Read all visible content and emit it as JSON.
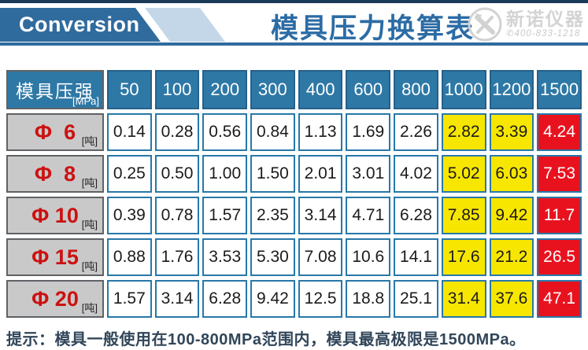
{
  "header": {
    "badge": "Conversion",
    "title": "模具压力换算表",
    "logo": {
      "brand": "新诺仪器",
      "phone_icon": "phone-icon",
      "phone": "400-833-1218"
    }
  },
  "table": {
    "corner": {
      "label": "模具压强",
      "unit": "[MPa]"
    },
    "pressure_columns": [
      "50",
      "100",
      "200",
      "300",
      "400",
      "600",
      "800",
      "1000",
      "1200",
      "1500"
    ],
    "row_unit": "[吨]",
    "rows": [
      {
        "label": "Φ  6",
        "values": [
          "0.14",
          "0.28",
          "0.56",
          "0.84",
          "1.13",
          "1.69",
          "2.26",
          "2.82",
          "3.39",
          "4.24"
        ]
      },
      {
        "label": "Φ  8",
        "values": [
          "0.25",
          "0.50",
          "1.00",
          "1.50",
          "2.01",
          "3.01",
          "4.02",
          "5.02",
          "6.03",
          "7.53"
        ]
      },
      {
        "label": "Φ 10",
        "values": [
          "0.39",
          "0.78",
          "1.57",
          "2.35",
          "3.14",
          "4.71",
          "6.28",
          "7.85",
          "9.42",
          "11.7"
        ]
      },
      {
        "label": "Φ 15",
        "values": [
          "0.88",
          "1.76",
          "3.53",
          "5.30",
          "7.08",
          "10.6",
          "14.1",
          "17.6",
          "21.2",
          "26.5"
        ]
      },
      {
        "label": "Φ 20",
        "values": [
          "1.57",
          "3.14",
          "6.28",
          "9.42",
          "12.5",
          "18.8",
          "25.1",
          "31.4",
          "37.6",
          "47.1"
        ]
      }
    ],
    "highlight": {
      "yellow_cols": [
        7,
        8
      ],
      "red_cols": [
        9
      ]
    }
  },
  "footer": {
    "tip": "提示：模具一般使用在100-800MPa范围内，模具最高极限是1500MPa。"
  },
  "colors": {
    "banner_blue": "#306b9e",
    "light_blue": "#c3d7e8",
    "header_blue": "#2e78a6",
    "cell_border": "#2878a8",
    "label_gray": "#c9c9c9",
    "label_red": "#cc1111",
    "yellow": "#f7e600",
    "red": "#e8121f",
    "tip_navy": "#31465a"
  },
  "chart_data": {
    "type": "table",
    "title": "模具压力换算表",
    "xlabel": "模具压强 (MPa)",
    "ylabel": "压力 (吨)",
    "categories": [
      50,
      100,
      200,
      300,
      400,
      600,
      800,
      1000,
      1200,
      1500
    ],
    "series": [
      {
        "name": "Φ 6",
        "values": [
          0.14,
          0.28,
          0.56,
          0.84,
          1.13,
          1.69,
          2.26,
          2.82,
          3.39,
          4.24
        ]
      },
      {
        "name": "Φ 8",
        "values": [
          0.25,
          0.5,
          1.0,
          1.5,
          2.01,
          3.01,
          4.02,
          5.02,
          6.03,
          7.53
        ]
      },
      {
        "name": "Φ 10",
        "values": [
          0.39,
          0.78,
          1.57,
          2.35,
          3.14,
          4.71,
          6.28,
          7.85,
          9.42,
          11.7
        ]
      },
      {
        "name": "Φ 15",
        "values": [
          0.88,
          1.76,
          3.53,
          5.3,
          7.08,
          10.6,
          14.1,
          17.6,
          21.2,
          26.5
        ]
      },
      {
        "name": "Φ 20",
        "values": [
          1.57,
          3.14,
          6.28,
          9.42,
          12.5,
          18.8,
          25.1,
          31.4,
          37.6,
          47.1
        ]
      }
    ],
    "highlight": {
      "yellow_columns_mpa": [
        1000,
        1200
      ],
      "red_columns_mpa": [
        1500
      ]
    },
    "note": "提示：模具一般使用在100-800MPa范围内，模具最高极限是1500MPa。"
  }
}
